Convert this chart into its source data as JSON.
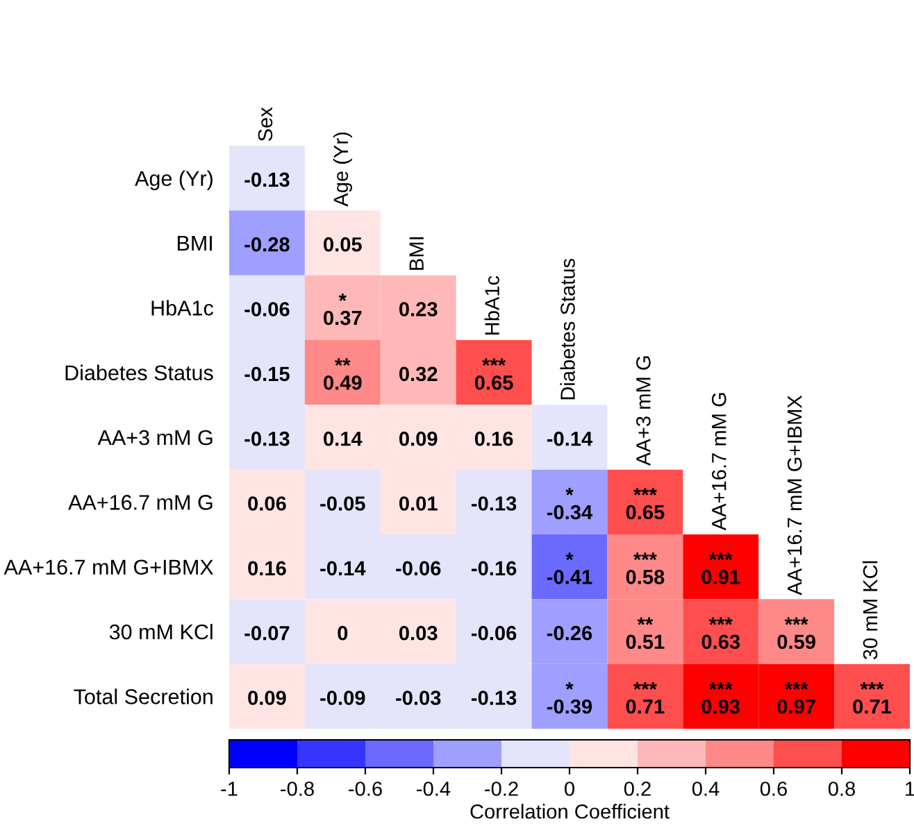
{
  "chart_data": {
    "type": "heatmap",
    "clabel": "Correlation Coefficient",
    "categories": [
      "Sex",
      "Age (Yr)",
      "BMI",
      "HbA1c",
      "Diabetes Status",
      "AA+3 mM G",
      "AA+16.7 mM G",
      "AA+16.7 mM G+IBMX",
      "30 mM KCl"
    ],
    "y_categories": [
      "Age (Yr)",
      "BMI",
      "HbA1c",
      "Diabetes Status",
      "AA+3 mM G",
      "AA+16.7 mM G",
      "AA+16.7 mM G+IBMX",
      "30 mM KCl",
      "Total Secretion"
    ],
    "cells": [
      [
        -0.13,
        null,
        null,
        null,
        null,
        null,
        null,
        null,
        null
      ],
      [
        -0.28,
        0.05,
        null,
        null,
        null,
        null,
        null,
        null,
        null
      ],
      [
        -0.06,
        0.37,
        0.23,
        null,
        null,
        null,
        null,
        null,
        null
      ],
      [
        -0.15,
        0.49,
        0.32,
        0.65,
        null,
        null,
        null,
        null,
        null
      ],
      [
        -0.13,
        0.14,
        0.09,
        0.16,
        -0.14,
        null,
        null,
        null,
        null
      ],
      [
        0.06,
        -0.05,
        0.01,
        -0.13,
        -0.34,
        0.65,
        null,
        null,
        null
      ],
      [
        0.16,
        -0.14,
        -0.06,
        -0.16,
        -0.41,
        0.58,
        0.91,
        null,
        null
      ],
      [
        -0.07,
        0,
        0.03,
        -0.06,
        -0.26,
        0.51,
        0.63,
        0.59,
        null
      ],
      [
        0.09,
        -0.09,
        -0.03,
        -0.13,
        -0.39,
        0.71,
        0.93,
        0.97,
        0.71
      ]
    ],
    "cell_labels": [
      [
        "-0.13",
        null,
        null,
        null,
        null,
        null,
        null,
        null,
        null
      ],
      [
        "-0.28",
        "0.05",
        null,
        null,
        null,
        null,
        null,
        null,
        null
      ],
      [
        "-0.06",
        "*\n0.37",
        "0.23",
        null,
        null,
        null,
        null,
        null,
        null
      ],
      [
        "-0.15",
        "**\n0.49",
        "0.32",
        "***\n0.65",
        null,
        null,
        null,
        null,
        null
      ],
      [
        "-0.13",
        "0.14",
        "0.09",
        "0.16",
        "-0.14",
        null,
        null,
        null,
        null
      ],
      [
        "0.06",
        "-0.05",
        "0.01",
        "-0.13",
        "*\n-0.34",
        "***\n0.65",
        null,
        null,
        null
      ],
      [
        "0.16",
        "-0.14",
        "-0.06",
        "-0.16",
        "*\n-0.41",
        "***\n0.58",
        "***\n0.91",
        null,
        null
      ],
      [
        "-0.07",
        "0",
        "0.03",
        "-0.06",
        "-0.26",
        "**\n0.51",
        "***\n0.63",
        "***\n0.59",
        null
      ],
      [
        "0.09",
        "-0.09",
        "-0.03",
        "-0.13",
        "*\n-0.39",
        "***\n0.71",
        "***\n0.93",
        "***\n0.97",
        "***\n0.71"
      ]
    ],
    "colors": [
      "#0000ff",
      "#3535ff",
      "#6a6aff",
      "#9f9fff",
      "#e4e4fa",
      "#ffe4e4",
      "#ffb8b8",
      "#ff8888",
      "#ff4e4e",
      "#ff0000"
    ],
    "clim": [
      -1,
      1
    ],
    "cticks": [
      -1,
      -0.8,
      -0.6,
      -0.4,
      -0.2,
      0,
      0.2,
      0.4,
      0.6,
      0.8,
      1
    ]
  }
}
